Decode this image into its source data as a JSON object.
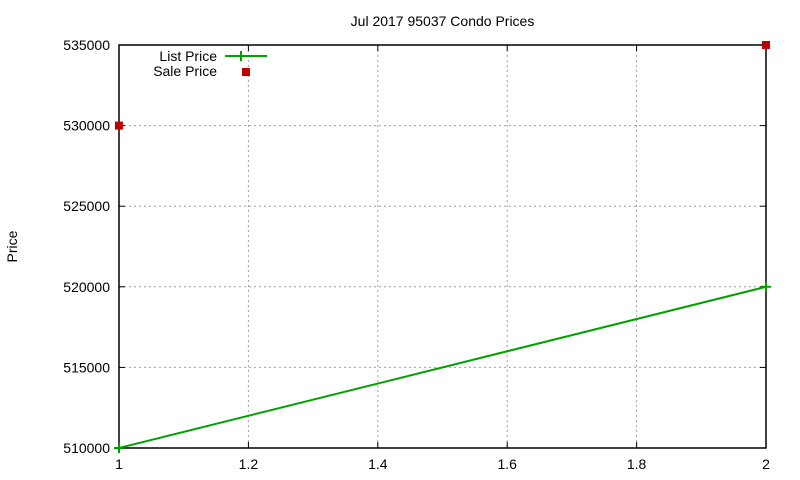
{
  "chart_data": {
    "type": "line",
    "title": "Jul 2017 95037 Condo Prices",
    "xlabel": "",
    "ylabel": "Price",
    "xlim": [
      1,
      2
    ],
    "ylim": [
      510000,
      535000
    ],
    "x_ticks": [
      "1",
      "1.2",
      "1.4",
      "1.6",
      "1.8",
      "2"
    ],
    "y_ticks": [
      "510000",
      "515000",
      "520000",
      "525000",
      "530000",
      "535000"
    ],
    "grid": true,
    "legend_position": "top-left",
    "series": [
      {
        "name": "List Price",
        "style": "line+cross",
        "color": "#00a000",
        "x": [
          1,
          2
        ],
        "values": [
          510000,
          520000
        ]
      },
      {
        "name": "Sale Price",
        "style": "square-points",
        "color": "#c00000",
        "x": [
          1,
          2
        ],
        "values": [
          530000,
          535000
        ]
      }
    ]
  }
}
